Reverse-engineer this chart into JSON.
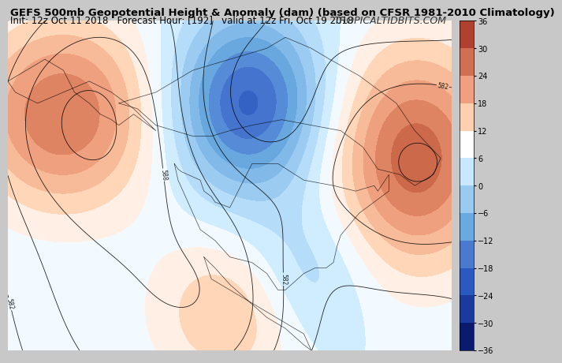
{
  "title_line1": "GEFS 500mb Geopotential Height & Anomaly (dam) (based on CFSR 1981-2010 Climatology)",
  "title_line2": "Init: 12z Oct 11 2018   Forecast Hour: [192]   valid at 12z Fri, Oct 19 2018",
  "watermark": "TROPICALTIDBITS.COM",
  "colorbar_ticks": [
    -36,
    -30,
    -24,
    -18,
    -12,
    -6,
    0,
    6,
    12,
    18,
    24,
    30,
    36
  ],
  "colorbar_colors": [
    "#0a1a6e",
    "#1a3a9e",
    "#2a5abf",
    "#4a7ad0",
    "#6aaae0",
    "#9acaf0",
    "#c8e8ff",
    "#ffffff",
    "#ffd0b0",
    "#f0a080",
    "#d07050",
    "#b04030",
    "#800020"
  ],
  "fig_width": 6.4,
  "fig_height": 4.8,
  "bg_color": "#e8e8e8",
  "map_bg": "#ddeeff",
  "title_fontsize": 9.5,
  "subtitle_fontsize": 8.5,
  "watermark_fontsize": 9
}
